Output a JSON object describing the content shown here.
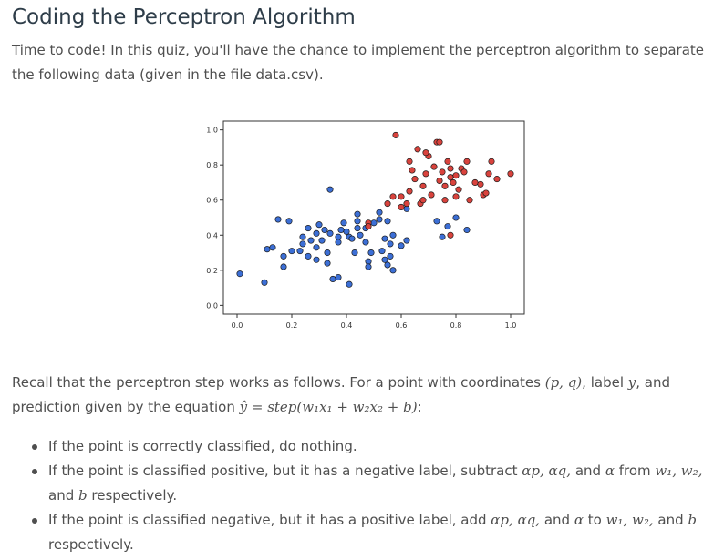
{
  "page": {
    "title": "Coding the Perceptron Algorithm",
    "intro": "Time to code! In this quiz, you'll have the chance to implement the perceptron algorithm to separate the following data (given in the file data.csv).",
    "recall_text": "Recall that the perceptron step works as follows. For a point with coordinates ",
    "recall_coords": "(p, q)",
    "recall_label_text": ", label ",
    "recall_label_var": "y",
    "recall_and": ", and",
    "recall_pred_text": "prediction given by the equation ",
    "recall_equation": "ŷ = step(w₁x₁ + w₂x₂ + b)",
    "recall_colon": ":",
    "rules": [
      {
        "pre": "If the point is correctly classified, do nothing.",
        "math": "",
        "post": ""
      },
      {
        "pre": "If the point is classified positive, but it has a negative label, subtract ",
        "math": "αp, αq,",
        "mid": " and ",
        "math2": "α",
        "mid2": " from ",
        "math3": "w₁, w₂,",
        "mid3": " and ",
        "math4": "b",
        "post": " respectively."
      },
      {
        "pre": "If the point is classified negative, but it has a positive label, add ",
        "math": "αp, αq,",
        "mid": " and ",
        "math2": "α",
        "mid2": " to ",
        "math3": "w₁, w₂,",
        "mid3": " and ",
        "math4": "b",
        "post": " respectively."
      }
    ]
  },
  "colors": {
    "blue_point": "#3c6fd6",
    "red_point": "#d9433d",
    "point_edge": "#1a1a1a",
    "heading": "#2e3d49"
  },
  "chart_data": {
    "type": "scatter",
    "title": "",
    "xlabel": "",
    "ylabel": "",
    "xlim": [
      -0.05,
      1.05
    ],
    "ylim": [
      -0.05,
      1.05
    ],
    "xticks": [
      "0.0",
      "0.2",
      "0.4",
      "0.6",
      "0.8",
      "1.0"
    ],
    "yticks": [
      "0.0",
      "0.2",
      "0.4",
      "0.6",
      "0.8",
      "1.0"
    ],
    "grid": false,
    "legend": "none",
    "series": [
      {
        "color": "blue",
        "points": [
          [
            0.01,
            0.18
          ],
          [
            0.1,
            0.13
          ],
          [
            0.11,
            0.32
          ],
          [
            0.13,
            0.33
          ],
          [
            0.17,
            0.28
          ],
          [
            0.17,
            0.22
          ],
          [
            0.15,
            0.49
          ],
          [
            0.19,
            0.48
          ],
          [
            0.2,
            0.31
          ],
          [
            0.23,
            0.31
          ],
          [
            0.24,
            0.35
          ],
          [
            0.26,
            0.44
          ],
          [
            0.26,
            0.28
          ],
          [
            0.27,
            0.37
          ],
          [
            0.29,
            0.26
          ],
          [
            0.29,
            0.33
          ],
          [
            0.29,
            0.41
          ],
          [
            0.3,
            0.46
          ],
          [
            0.31,
            0.37
          ],
          [
            0.32,
            0.43
          ],
          [
            0.33,
            0.24
          ],
          [
            0.33,
            0.3
          ],
          [
            0.34,
            0.66
          ],
          [
            0.34,
            0.41
          ],
          [
            0.35,
            0.15
          ],
          [
            0.37,
            0.16
          ],
          [
            0.37,
            0.39
          ],
          [
            0.37,
            0.36
          ],
          [
            0.38,
            0.43
          ],
          [
            0.39,
            0.47
          ],
          [
            0.4,
            0.42
          ],
          [
            0.41,
            0.39
          ],
          [
            0.42,
            0.38
          ],
          [
            0.43,
            0.3
          ],
          [
            0.44,
            0.44
          ],
          [
            0.44,
            0.48
          ],
          [
            0.44,
            0.52
          ],
          [
            0.45,
            0.4
          ],
          [
            0.47,
            0.44
          ],
          [
            0.47,
            0.36
          ],
          [
            0.48,
            0.25
          ],
          [
            0.48,
            0.22
          ],
          [
            0.49,
            0.3
          ],
          [
            0.5,
            0.47
          ],
          [
            0.53,
            0.31
          ],
          [
            0.54,
            0.38
          ],
          [
            0.54,
            0.26
          ],
          [
            0.55,
            0.23
          ],
          [
            0.56,
            0.35
          ],
          [
            0.57,
            0.2
          ],
          [
            0.57,
            0.4
          ],
          [
            0.52,
            0.53
          ],
          [
            0.52,
            0.49
          ],
          [
            0.41,
            0.12
          ],
          [
            0.24,
            0.39
          ],
          [
            0.55,
            0.48
          ],
          [
            0.56,
            0.28
          ],
          [
            0.6,
            0.34
          ],
          [
            0.62,
            0.37
          ],
          [
            0.62,
            0.55
          ],
          [
            0.73,
            0.48
          ],
          [
            0.75,
            0.39
          ],
          [
            0.77,
            0.45
          ],
          [
            0.8,
            0.5
          ],
          [
            0.84,
            0.43
          ]
        ]
      },
      {
        "color": "red",
        "points": [
          [
            0.58,
            0.97
          ],
          [
            0.6,
            0.56
          ],
          [
            0.62,
            0.58
          ],
          [
            0.63,
            0.65
          ],
          [
            0.64,
            0.77
          ],
          [
            0.65,
            0.72
          ],
          [
            0.66,
            0.89
          ],
          [
            0.67,
            0.58
          ],
          [
            0.68,
            0.68
          ],
          [
            0.69,
            0.75
          ],
          [
            0.7,
            0.85
          ],
          [
            0.71,
            0.63
          ],
          [
            0.72,
            0.79
          ],
          [
            0.73,
            0.93
          ],
          [
            0.74,
            0.93
          ],
          [
            0.74,
            0.71
          ],
          [
            0.75,
            0.76
          ],
          [
            0.76,
            0.68
          ],
          [
            0.76,
            0.6
          ],
          [
            0.77,
            0.82
          ],
          [
            0.78,
            0.78
          ],
          [
            0.78,
            0.73
          ],
          [
            0.79,
            0.7
          ],
          [
            0.8,
            0.74
          ],
          [
            0.8,
            0.62
          ],
          [
            0.81,
            0.66
          ],
          [
            0.82,
            0.78
          ],
          [
            0.83,
            0.76
          ],
          [
            0.84,
            0.82
          ],
          [
            0.85,
            0.6
          ],
          [
            0.87,
            0.7
          ],
          [
            0.89,
            0.69
          ],
          [
            0.9,
            0.63
          ],
          [
            0.91,
            0.64
          ],
          [
            0.92,
            0.75
          ],
          [
            0.93,
            0.82
          ],
          [
            0.95,
            0.72
          ],
          [
            1.0,
            0.75
          ],
          [
            0.78,
            0.4
          ],
          [
            0.68,
            0.6
          ],
          [
            0.63,
            0.82
          ],
          [
            0.69,
            0.87
          ],
          [
            0.6,
            0.62
          ],
          [
            0.55,
            0.58
          ],
          [
            0.57,
            0.62
          ],
          [
            0.48,
            0.47
          ],
          [
            0.48,
            0.45
          ]
        ]
      }
    ]
  }
}
